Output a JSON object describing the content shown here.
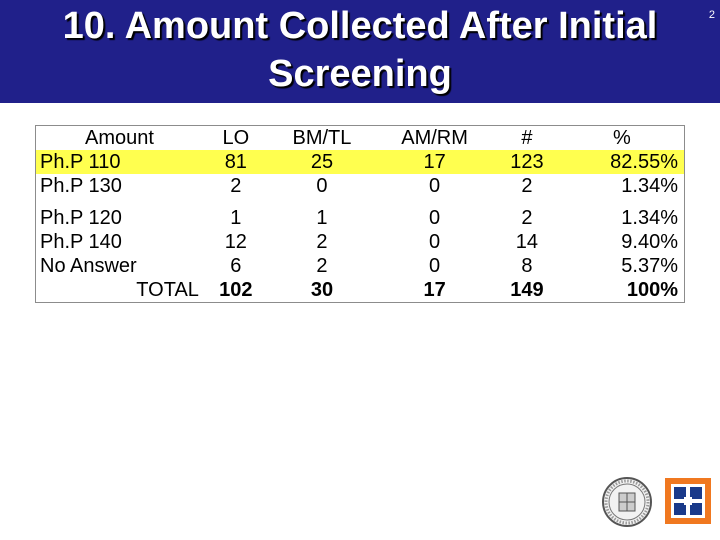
{
  "slide": {
    "title": "10. Amount Collected After Initial Screening",
    "title_line1": "10. Amount Collected After Initial",
    "title_line2": "Screening",
    "slide_number": "2"
  },
  "table": {
    "headers": [
      "Amount",
      "LO",
      "BM/TL",
      "AM/RM",
      "#",
      "%"
    ],
    "rows": [
      {
        "amount": "Ph.P 110",
        "lo": "81",
        "bmtl": "25",
        "amrm": "17",
        "count": "123",
        "pct": "82.55%"
      },
      {
        "amount": "Ph.P 130",
        "lo": "2",
        "bmtl": "0",
        "amrm": "0",
        "count": "2",
        "pct": "1.34%"
      },
      {
        "amount": "Ph.P 120",
        "lo": "1",
        "bmtl": "1",
        "amrm": "0",
        "count": "2",
        "pct": "1.34%"
      },
      {
        "amount": "Ph.P 140",
        "lo": "12",
        "bmtl": "2",
        "amrm": "0",
        "count": "14",
        "pct": "9.40%"
      },
      {
        "amount": "No Answer",
        "lo": "6",
        "bmtl": "2",
        "amrm": "0",
        "count": "8",
        "pct": "5.37%"
      }
    ],
    "total": {
      "label": "TOTAL",
      "lo": "102",
      "bmtl": "30",
      "amrm": "17",
      "count": "149",
      "pct": "100%"
    }
  },
  "colors": {
    "title_bg": "#20208a",
    "highlight": "#ffff4f",
    "logo_orange": "#f07820",
    "logo_blue": "#1a3a8a"
  },
  "logos": [
    "seal-logo",
    "organization-logo"
  ]
}
